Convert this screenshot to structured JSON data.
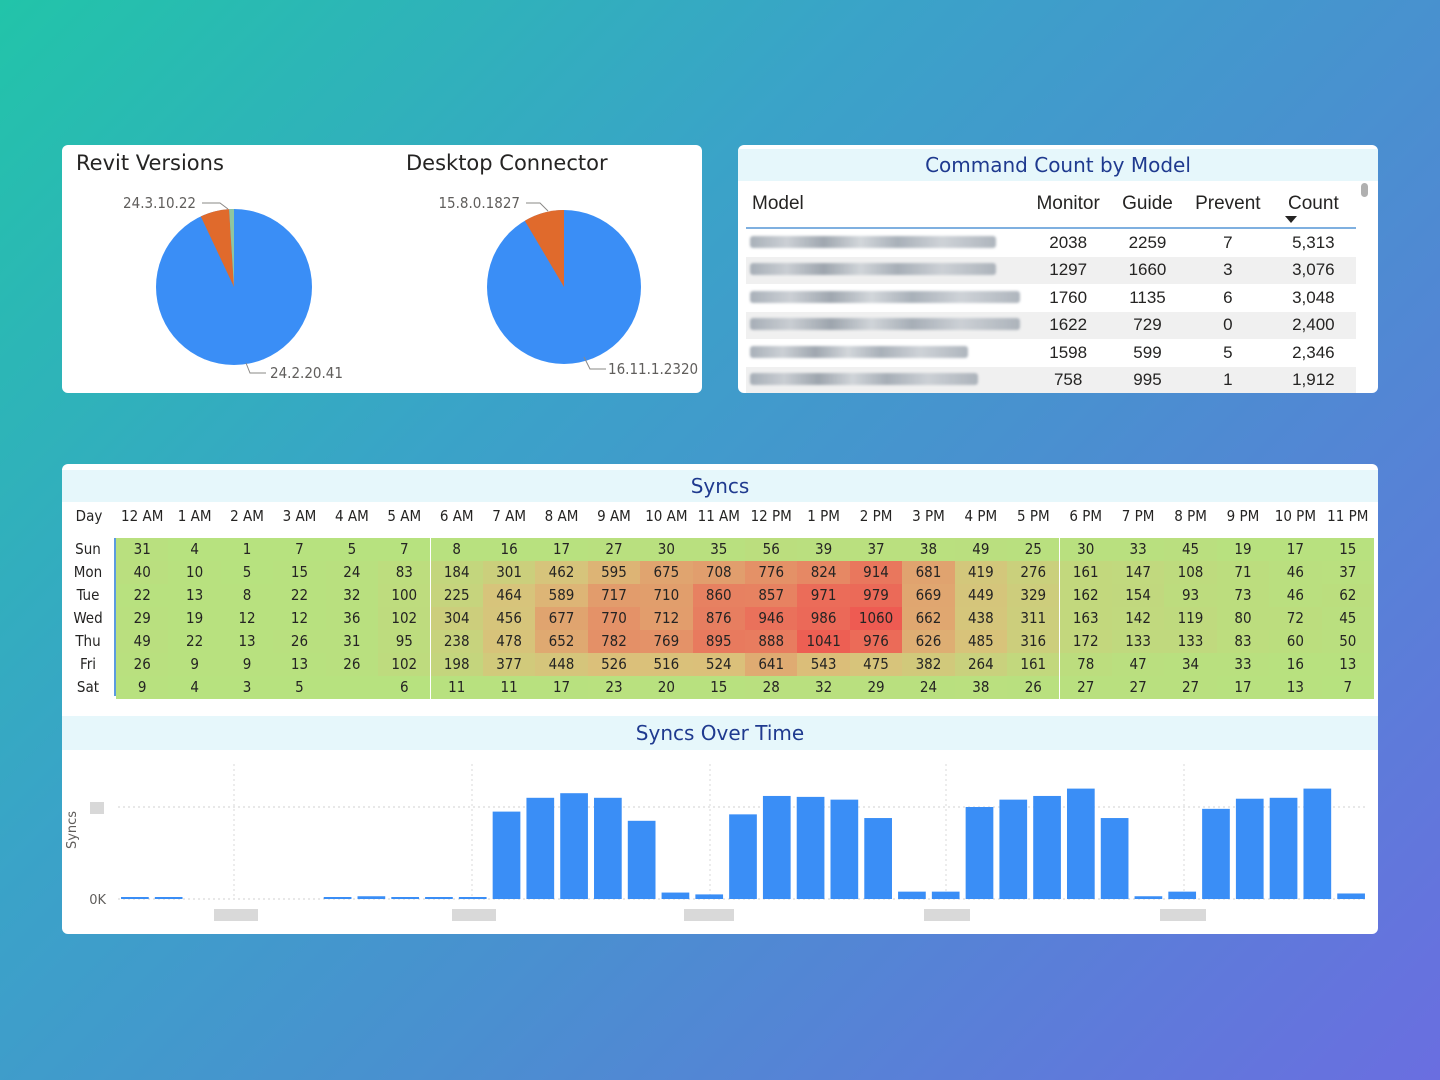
{
  "pies": {
    "revit": {
      "title": "Revit Versions",
      "label_small": "24.3.10.22",
      "label_large": "24.2.20.41"
    },
    "connector": {
      "title": "Desktop Connector",
      "label_small": "15.8.0.1827",
      "label_large": "16.11.1.2320"
    }
  },
  "command_table": {
    "title": "Command Count by Model",
    "columns": [
      "Model",
      "Monitor",
      "Guide",
      "Prevent",
      "Count"
    ],
    "rows": [
      {
        "monitor": "2038",
        "guide": "2259",
        "prevent": "7",
        "count": "5,313"
      },
      {
        "monitor": "1297",
        "guide": "1660",
        "prevent": "3",
        "count": "3,076"
      },
      {
        "monitor": "1760",
        "guide": "1135",
        "prevent": "6",
        "count": "3,048"
      },
      {
        "monitor": "1622",
        "guide": "729",
        "prevent": "0",
        "count": "2,400"
      },
      {
        "monitor": "1598",
        "guide": "599",
        "prevent": "5",
        "count": "2,346"
      },
      {
        "monitor": "758",
        "guide": "995",
        "prevent": "1",
        "count": "1,912"
      }
    ]
  },
  "heatmap": {
    "title": "Syncs",
    "day_header": "Day",
    "hours": [
      "12 AM",
      "1 AM",
      "2 AM",
      "3 AM",
      "4 AM",
      "5 AM",
      "6 AM",
      "7 AM",
      "8 AM",
      "9 AM",
      "10 AM",
      "11 AM",
      "12 PM",
      "1 PM",
      "2 PM",
      "3 PM",
      "4 PM",
      "5 PM",
      "6 PM",
      "7 PM",
      "8 PM",
      "9 PM",
      "10 PM",
      "11 PM"
    ],
    "days": [
      "Sun",
      "Mon",
      "Tue",
      "Wed",
      "Thu",
      "Fri",
      "Sat"
    ],
    "values": [
      [
        "31",
        "4",
        "1",
        "7",
        "5",
        "7",
        "8",
        "16",
        "17",
        "27",
        "30",
        "35",
        "56",
        "39",
        "37",
        "38",
        "49",
        "25",
        "30",
        "33",
        "45",
        "19",
        "17",
        "15"
      ],
      [
        "40",
        "10",
        "5",
        "15",
        "24",
        "83",
        "184",
        "301",
        "462",
        "595",
        "675",
        "708",
        "776",
        "824",
        "914",
        "681",
        "419",
        "276",
        "161",
        "147",
        "108",
        "71",
        "46",
        "37"
      ],
      [
        "22",
        "13",
        "8",
        "22",
        "32",
        "100",
        "225",
        "464",
        "589",
        "717",
        "710",
        "860",
        "857",
        "971",
        "979",
        "669",
        "449",
        "329",
        "162",
        "154",
        "93",
        "73",
        "46",
        "62"
      ],
      [
        "29",
        "19",
        "12",
        "12",
        "36",
        "102",
        "304",
        "456",
        "677",
        "770",
        "712",
        "876",
        "946",
        "986",
        "1060",
        "662",
        "438",
        "311",
        "163",
        "142",
        "119",
        "80",
        "72",
        "45"
      ],
      [
        "49",
        "22",
        "13",
        "26",
        "31",
        "95",
        "238",
        "478",
        "652",
        "782",
        "769",
        "895",
        "888",
        "1041",
        "976",
        "626",
        "485",
        "316",
        "172",
        "133",
        "133",
        "83",
        "60",
        "50"
      ],
      [
        "26",
        "9",
        "9",
        "13",
        "26",
        "102",
        "198",
        "377",
        "448",
        "526",
        "516",
        "524",
        "641",
        "543",
        "475",
        "382",
        "264",
        "161",
        "78",
        "47",
        "34",
        "33",
        "16",
        "13"
      ],
      [
        "9",
        "4",
        "3",
        "5",
        "",
        "6",
        "11",
        "11",
        "17",
        "23",
        "20",
        "15",
        "28",
        "32",
        "29",
        "24",
        "38",
        "26",
        "27",
        "27",
        "27",
        "17",
        "13",
        "7"
      ]
    ]
  },
  "chart_data": {
    "type": "bar",
    "title": "Syncs Over Time",
    "ylabel": "Syncs",
    "ytick_bottom": "0K",
    "values": [
      0.02,
      0.02,
      0,
      0,
      0,
      0,
      0.02,
      0.03,
      0.02,
      0.02,
      0.02,
      0.95,
      1.1,
      1.15,
      1.1,
      0.85,
      0.07,
      0.05,
      0.92,
      1.12,
      1.11,
      1.08,
      0.88,
      0.08,
      0.08,
      1.0,
      1.08,
      1.12,
      1.2,
      0.88,
      0.03,
      0.08,
      0.98,
      1.09,
      1.1,
      1.2,
      0.06
    ],
    "color": "#3a8ef6",
    "grid": true,
    "legend": "none"
  },
  "colors": {
    "pie_large": "#3a8ef6",
    "pie_small": "#e06a2c",
    "pie_tiny": "#8fc6a0",
    "heat_low": "#b7e27f",
    "heat_mid": "#dbc07a",
    "heat_high": "#ee5b52"
  }
}
